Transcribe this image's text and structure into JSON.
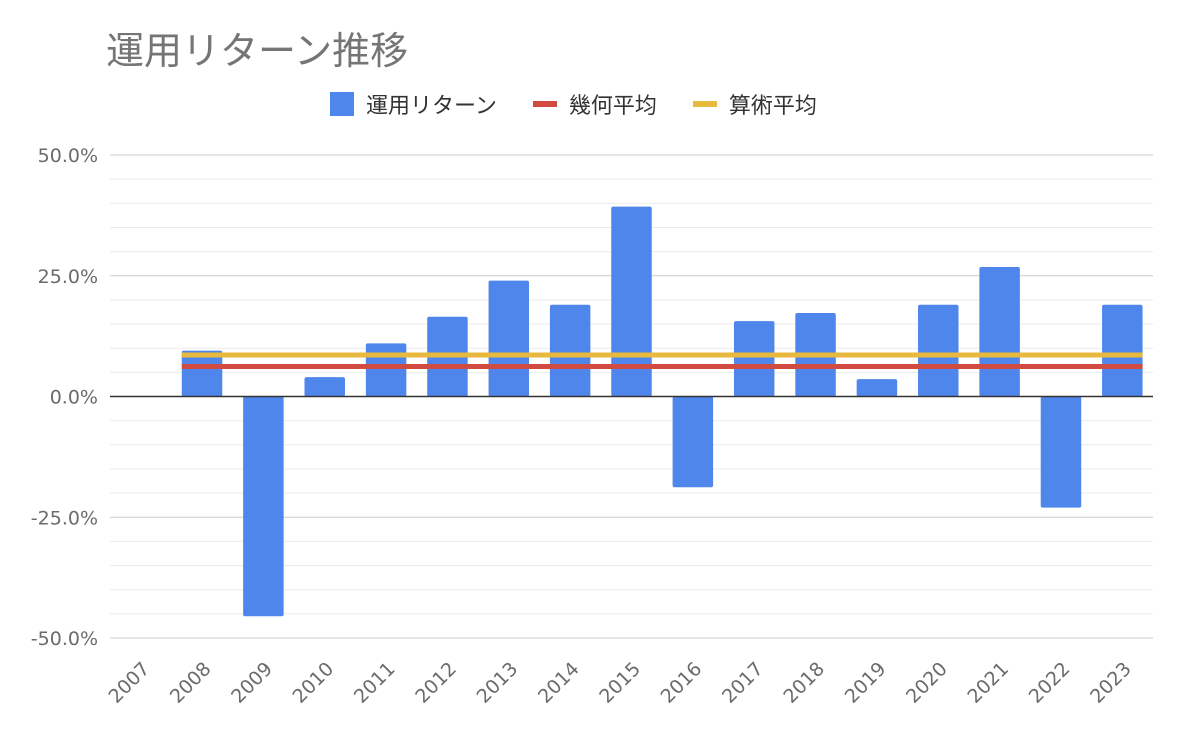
{
  "chart_data": {
    "type": "bar",
    "title": "運用リターン推移",
    "categories": [
      "2007",
      "2008",
      "2009",
      "2010",
      "2011",
      "2012",
      "2013",
      "2014",
      "2015",
      "2016",
      "2017",
      "2018",
      "2019",
      "2020",
      "2021",
      "2022",
      "2023"
    ],
    "series": [
      {
        "name": "運用リターン",
        "kind": "bar",
        "color": "#4f86ec",
        "values": [
          null,
          9.5,
          -45.5,
          4.0,
          11.0,
          16.5,
          24.0,
          19.0,
          39.3,
          -18.8,
          15.6,
          17.3,
          3.6,
          19.0,
          26.8,
          -23.0,
          19.0
        ]
      },
      {
        "name": "幾何平均",
        "kind": "line",
        "color": "#d24b40",
        "value": 6.2,
        "from": "2008",
        "to": "2023"
      },
      {
        "name": "算術平均",
        "kind": "line",
        "color": "#e9b93d",
        "value": 8.6,
        "from": "2008",
        "to": "2023"
      }
    ],
    "y_ticks": [
      "50.0%",
      "25.0%",
      "0.0%",
      "-25.0%",
      "-50.0%"
    ],
    "ylim": [
      -50,
      50
    ],
    "grid": true,
    "legend_position": "top"
  }
}
